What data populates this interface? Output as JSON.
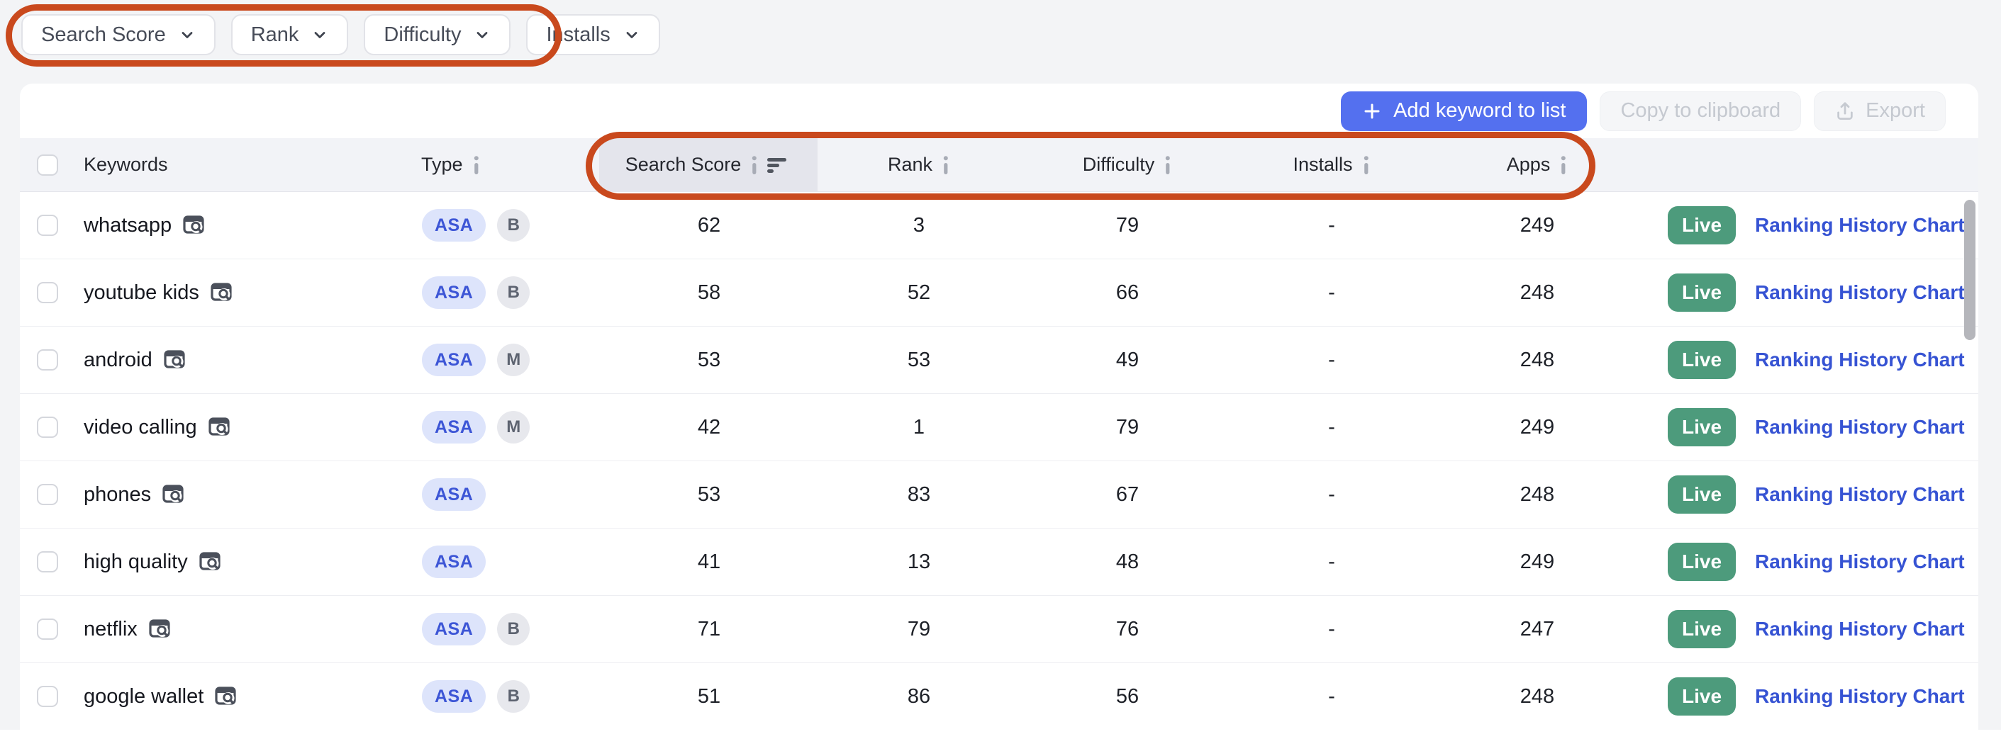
{
  "filters": [
    {
      "label": "Search Score"
    },
    {
      "label": "Rank"
    },
    {
      "label": "Difficulty"
    },
    {
      "label": "Installs"
    }
  ],
  "toolbar": {
    "add_keyword_label": "Add keyword to list",
    "copy_label": "Copy to clipboard",
    "export_label": "Export"
  },
  "table": {
    "headers": {
      "keywords": "Keywords",
      "type": "Type",
      "search_score": "Search Score",
      "rank": "Rank",
      "difficulty": "Difficulty",
      "installs": "Installs",
      "apps": "Apps"
    },
    "sorted_column": "Search Score",
    "rows": [
      {
        "keyword": "whatsapp",
        "badges": [
          {
            "text": "ASA",
            "kind": "asa"
          },
          {
            "text": "B",
            "kind": "gray"
          }
        ],
        "search_score": "62",
        "rank": "3",
        "difficulty": "79",
        "installs": "-",
        "apps": "249",
        "status": "Live",
        "link": "Ranking History Chart"
      },
      {
        "keyword": "youtube kids",
        "badges": [
          {
            "text": "ASA",
            "kind": "asa"
          },
          {
            "text": "B",
            "kind": "gray"
          }
        ],
        "search_score": "58",
        "rank": "52",
        "difficulty": "66",
        "installs": "-",
        "apps": "248",
        "status": "Live",
        "link": "Ranking History Chart"
      },
      {
        "keyword": "android",
        "badges": [
          {
            "text": "ASA",
            "kind": "asa"
          },
          {
            "text": "M",
            "kind": "gray"
          }
        ],
        "search_score": "53",
        "rank": "53",
        "difficulty": "49",
        "installs": "-",
        "apps": "248",
        "status": "Live",
        "link": "Ranking History Chart"
      },
      {
        "keyword": "video calling",
        "badges": [
          {
            "text": "ASA",
            "kind": "asa"
          },
          {
            "text": "M",
            "kind": "gray"
          }
        ],
        "search_score": "42",
        "rank": "1",
        "difficulty": "79",
        "installs": "-",
        "apps": "249",
        "status": "Live",
        "link": "Ranking History Chart"
      },
      {
        "keyword": "phones",
        "badges": [
          {
            "text": "ASA",
            "kind": "asa"
          }
        ],
        "search_score": "53",
        "rank": "83",
        "difficulty": "67",
        "installs": "-",
        "apps": "248",
        "status": "Live",
        "link": "Ranking History Chart"
      },
      {
        "keyword": "high quality",
        "badges": [
          {
            "text": "ASA",
            "kind": "asa"
          }
        ],
        "search_score": "41",
        "rank": "13",
        "difficulty": "48",
        "installs": "-",
        "apps": "249",
        "status": "Live",
        "link": "Ranking History Chart"
      },
      {
        "keyword": "netflix",
        "badges": [
          {
            "text": "ASA",
            "kind": "asa"
          },
          {
            "text": "B",
            "kind": "gray"
          }
        ],
        "search_score": "71",
        "rank": "79",
        "difficulty": "76",
        "installs": "-",
        "apps": "247",
        "status": "Live",
        "link": "Ranking History Chart"
      },
      {
        "keyword": "google wallet",
        "badges": [
          {
            "text": "ASA",
            "kind": "asa"
          },
          {
            "text": "B",
            "kind": "gray"
          }
        ],
        "search_score": "51",
        "rank": "86",
        "difficulty": "56",
        "installs": "-",
        "apps": "248",
        "status": "Live",
        "link": "Ranking History Chart"
      }
    ]
  },
  "colors": {
    "annotation": "#c9491d",
    "primary_button": "#5470ef",
    "link": "#3653d3",
    "live_badge": "#4d9b7c",
    "asa_badge_bg": "#dde4fb",
    "asa_badge_text": "#3d56d6"
  }
}
